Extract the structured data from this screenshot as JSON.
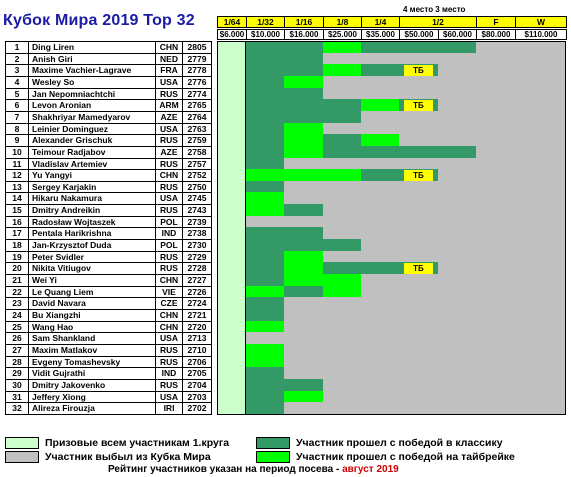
{
  "title": "Кубок Мира 2019 Top 32",
  "colors": {
    "title": "#1a1aa6",
    "header_bg": "#ffff00",
    "prize_zone": "#ccffcc",
    "eliminated": "#c0c0c0",
    "classic_win": "#339966",
    "tiebreak_win": "#00ff00",
    "tb_badge": "#ffff00",
    "note_highlight": "#cc0000"
  },
  "rounds": [
    "1/64",
    "1/32",
    "1/16",
    "1/8",
    "1/4",
    "1/2",
    "F",
    "W"
  ],
  "places_label": "4 место 3 место",
  "prizes": [
    "$6.000",
    "$10.000",
    "$16.000",
    "$25.000",
    "$35.000",
    "$50.000",
    "$60.000",
    "$80.000",
    "$110.000"
  ],
  "players": [
    {
      "n": "1",
      "name": "Ding Liren",
      "country": "CHN",
      "rating": "2805",
      "cells": [
        "p",
        "c",
        "c",
        "t",
        "c",
        "c",
        "c",
        "e",
        "e",
        "e"
      ],
      "tb": ""
    },
    {
      "n": "2",
      "name": "Anish Giri",
      "country": "NED",
      "rating": "2779",
      "cells": [
        "p",
        "c",
        "c",
        "e",
        "e",
        "e",
        "e",
        "e",
        "e",
        "e"
      ],
      "tb": ""
    },
    {
      "n": "3",
      "name": "Maxime Vachier-Lagrave",
      "country": "FRA",
      "rating": "2778",
      "cells": [
        "p",
        "c",
        "c",
        "t",
        "c",
        "c",
        "e",
        "e",
        "e",
        "e"
      ],
      "tb": "ТБ"
    },
    {
      "n": "4",
      "name": "Wesley So",
      "country": "USA",
      "rating": "2776",
      "cells": [
        "p",
        "c",
        "t",
        "e",
        "e",
        "e",
        "e",
        "e",
        "e",
        "e"
      ],
      "tb": ""
    },
    {
      "n": "5",
      "name": "Jan Nepomniachtchi",
      "country": "RUS",
      "rating": "2774",
      "cells": [
        "p",
        "c",
        "c",
        "e",
        "e",
        "e",
        "e",
        "e",
        "e",
        "e"
      ],
      "tb": ""
    },
    {
      "n": "6",
      "name": "Levon Aronian",
      "country": "ARM",
      "rating": "2765",
      "cells": [
        "p",
        "c",
        "c",
        "c",
        "t",
        "c",
        "e",
        "e",
        "e",
        "e"
      ],
      "tb": "ТБ"
    },
    {
      "n": "7",
      "name": "Shakhriyar Mamedyarov",
      "country": "AZE",
      "rating": "2764",
      "cells": [
        "p",
        "c",
        "c",
        "c",
        "e",
        "e",
        "e",
        "e",
        "e",
        "e"
      ],
      "tb": ""
    },
    {
      "n": "8",
      "name": "Leinier Dominguez",
      "country": "USA",
      "rating": "2763",
      "cells": [
        "p",
        "c",
        "t",
        "e",
        "e",
        "e",
        "e",
        "e",
        "e",
        "e"
      ],
      "tb": ""
    },
    {
      "n": "9",
      "name": "Alexander Grischuk",
      "country": "RUS",
      "rating": "2759",
      "cells": [
        "p",
        "c",
        "t",
        "c",
        "t",
        "e",
        "e",
        "e",
        "e",
        "e"
      ],
      "tb": ""
    },
    {
      "n": "10",
      "name": "Teimour Radjabov",
      "country": "AZE",
      "rating": "2758",
      "cells": [
        "p",
        "c",
        "t",
        "c",
        "c",
        "c",
        "c",
        "e",
        "e",
        "e"
      ],
      "tb": ""
    },
    {
      "n": "11",
      "name": "Vladislav Artemiev",
      "country": "RUS",
      "rating": "2757",
      "cells": [
        "p",
        "c",
        "e",
        "e",
        "e",
        "e",
        "e",
        "e",
        "e",
        "e"
      ],
      "tb": ""
    },
    {
      "n": "12",
      "name": "Yu Yangyi",
      "country": "CHN",
      "rating": "2752",
      "cells": [
        "p",
        "t",
        "t",
        "t",
        "c",
        "c",
        "e",
        "e",
        "e",
        "e"
      ],
      "tb": "ТБ"
    },
    {
      "n": "13",
      "name": "Sergey Karjakin",
      "country": "RUS",
      "rating": "2750",
      "cells": [
        "p",
        "c",
        "e",
        "e",
        "e",
        "e",
        "e",
        "e",
        "e",
        "e"
      ],
      "tb": ""
    },
    {
      "n": "14",
      "name": "Hikaru Nakamura",
      "country": "USA",
      "rating": "2745",
      "cells": [
        "p",
        "t",
        "e",
        "e",
        "e",
        "e",
        "e",
        "e",
        "e",
        "e"
      ],
      "tb": ""
    },
    {
      "n": "15",
      "name": "Dmitry Andreikin",
      "country": "RUS",
      "rating": "2743",
      "cells": [
        "p",
        "t",
        "c",
        "e",
        "e",
        "e",
        "e",
        "e",
        "e",
        "e"
      ],
      "tb": ""
    },
    {
      "n": "16",
      "name": "Radosław Wojtaszek",
      "country": "POL",
      "rating": "2739",
      "cells": [
        "p",
        "e",
        "e",
        "e",
        "e",
        "e",
        "e",
        "e",
        "e",
        "e"
      ],
      "tb": ""
    },
    {
      "n": "17",
      "name": "Pentala Harikrishna",
      "country": "IND",
      "rating": "2738",
      "cells": [
        "p",
        "c",
        "c",
        "e",
        "e",
        "e",
        "e",
        "e",
        "e",
        "e"
      ],
      "tb": ""
    },
    {
      "n": "18",
      "name": "Jan-Krzysztof Duda",
      "country": "POL",
      "rating": "2730",
      "cells": [
        "p",
        "c",
        "c",
        "c",
        "e",
        "e",
        "e",
        "e",
        "e",
        "e"
      ],
      "tb": ""
    },
    {
      "n": "19",
      "name": "Peter Svidler",
      "country": "RUS",
      "rating": "2729",
      "cells": [
        "p",
        "c",
        "t",
        "e",
        "e",
        "e",
        "e",
        "e",
        "e",
        "e"
      ],
      "tb": ""
    },
    {
      "n": "20",
      "name": "Nikita Vitiugov",
      "country": "RUS",
      "rating": "2728",
      "cells": [
        "p",
        "c",
        "t",
        "c",
        "c",
        "c",
        "e",
        "e",
        "e",
        "e"
      ],
      "tb": "ТБ"
    },
    {
      "n": "21",
      "name": "Wei Yi",
      "country": "CHN",
      "rating": "2727",
      "cells": [
        "p",
        "c",
        "t",
        "t",
        "e",
        "e",
        "e",
        "e",
        "e",
        "e"
      ],
      "tb": ""
    },
    {
      "n": "22",
      "name": "Le Quang Liem",
      "country": "VIE",
      "rating": "2726",
      "cells": [
        "p",
        "t",
        "c",
        "t",
        "e",
        "e",
        "e",
        "e",
        "e",
        "e"
      ],
      "tb": ""
    },
    {
      "n": "23",
      "name": "David Navara",
      "country": "CZE",
      "rating": "2724",
      "cells": [
        "p",
        "c",
        "e",
        "e",
        "e",
        "e",
        "e",
        "e",
        "e",
        "e"
      ],
      "tb": ""
    },
    {
      "n": "24",
      "name": "Bu Xiangzhi",
      "country": "CHN",
      "rating": "2721",
      "cells": [
        "p",
        "c",
        "e",
        "e",
        "e",
        "e",
        "e",
        "e",
        "e",
        "e"
      ],
      "tb": ""
    },
    {
      "n": "25",
      "name": "Wang Hao",
      "country": "CHN",
      "rating": "2720",
      "cells": [
        "p",
        "t",
        "e",
        "e",
        "e",
        "e",
        "e",
        "e",
        "e",
        "e"
      ],
      "tb": ""
    },
    {
      "n": "26",
      "name": "Sam Shankland",
      "country": "USA",
      "rating": "2713",
      "cells": [
        "p",
        "e",
        "e",
        "e",
        "e",
        "e",
        "e",
        "e",
        "e",
        "e"
      ],
      "tb": ""
    },
    {
      "n": "27",
      "name": "Maxim Matlakov",
      "country": "RUS",
      "rating": "2710",
      "cells": [
        "p",
        "t",
        "e",
        "e",
        "e",
        "e",
        "e",
        "e",
        "e",
        "e"
      ],
      "tb": ""
    },
    {
      "n": "28",
      "name": "Evgeny Tomashevsky",
      "country": "RUS",
      "rating": "2706",
      "cells": [
        "p",
        "t",
        "e",
        "e",
        "e",
        "e",
        "e",
        "e",
        "e",
        "e"
      ],
      "tb": ""
    },
    {
      "n": "29",
      "name": "Vidit Gujrathi",
      "country": "IND",
      "rating": "2705",
      "cells": [
        "p",
        "c",
        "e",
        "e",
        "e",
        "e",
        "e",
        "e",
        "e",
        "e"
      ],
      "tb": ""
    },
    {
      "n": "30",
      "name": "Dmitry Jakovenko",
      "country": "RUS",
      "rating": "2704",
      "cells": [
        "p",
        "c",
        "c",
        "e",
        "e",
        "e",
        "e",
        "e",
        "e",
        "e"
      ],
      "tb": ""
    },
    {
      "n": "31",
      "name": "Jeffery Xiong",
      "country": "USA",
      "rating": "2703",
      "cells": [
        "p",
        "c",
        "t",
        "e",
        "e",
        "e",
        "e",
        "e",
        "e",
        "e"
      ],
      "tb": ""
    },
    {
      "n": "32",
      "name": "Alireza Firouzja",
      "country": "IRI",
      "rating": "2702",
      "cells": [
        "p",
        "c",
        "e",
        "e",
        "e",
        "e",
        "e",
        "e",
        "e",
        "e"
      ],
      "tb": ""
    }
  ],
  "legend": {
    "prize_all": "Призовые всем участникам 1.круга",
    "eliminated": "Участник выбыл из Кубка Мира",
    "classic": "Участник прошел с победой в классику",
    "tiebreak": "Участник прошел с победой на тайбрейке"
  },
  "note": {
    "text": "Рейтинг участников указан на период посева - ",
    "highlight": "август 2019"
  }
}
